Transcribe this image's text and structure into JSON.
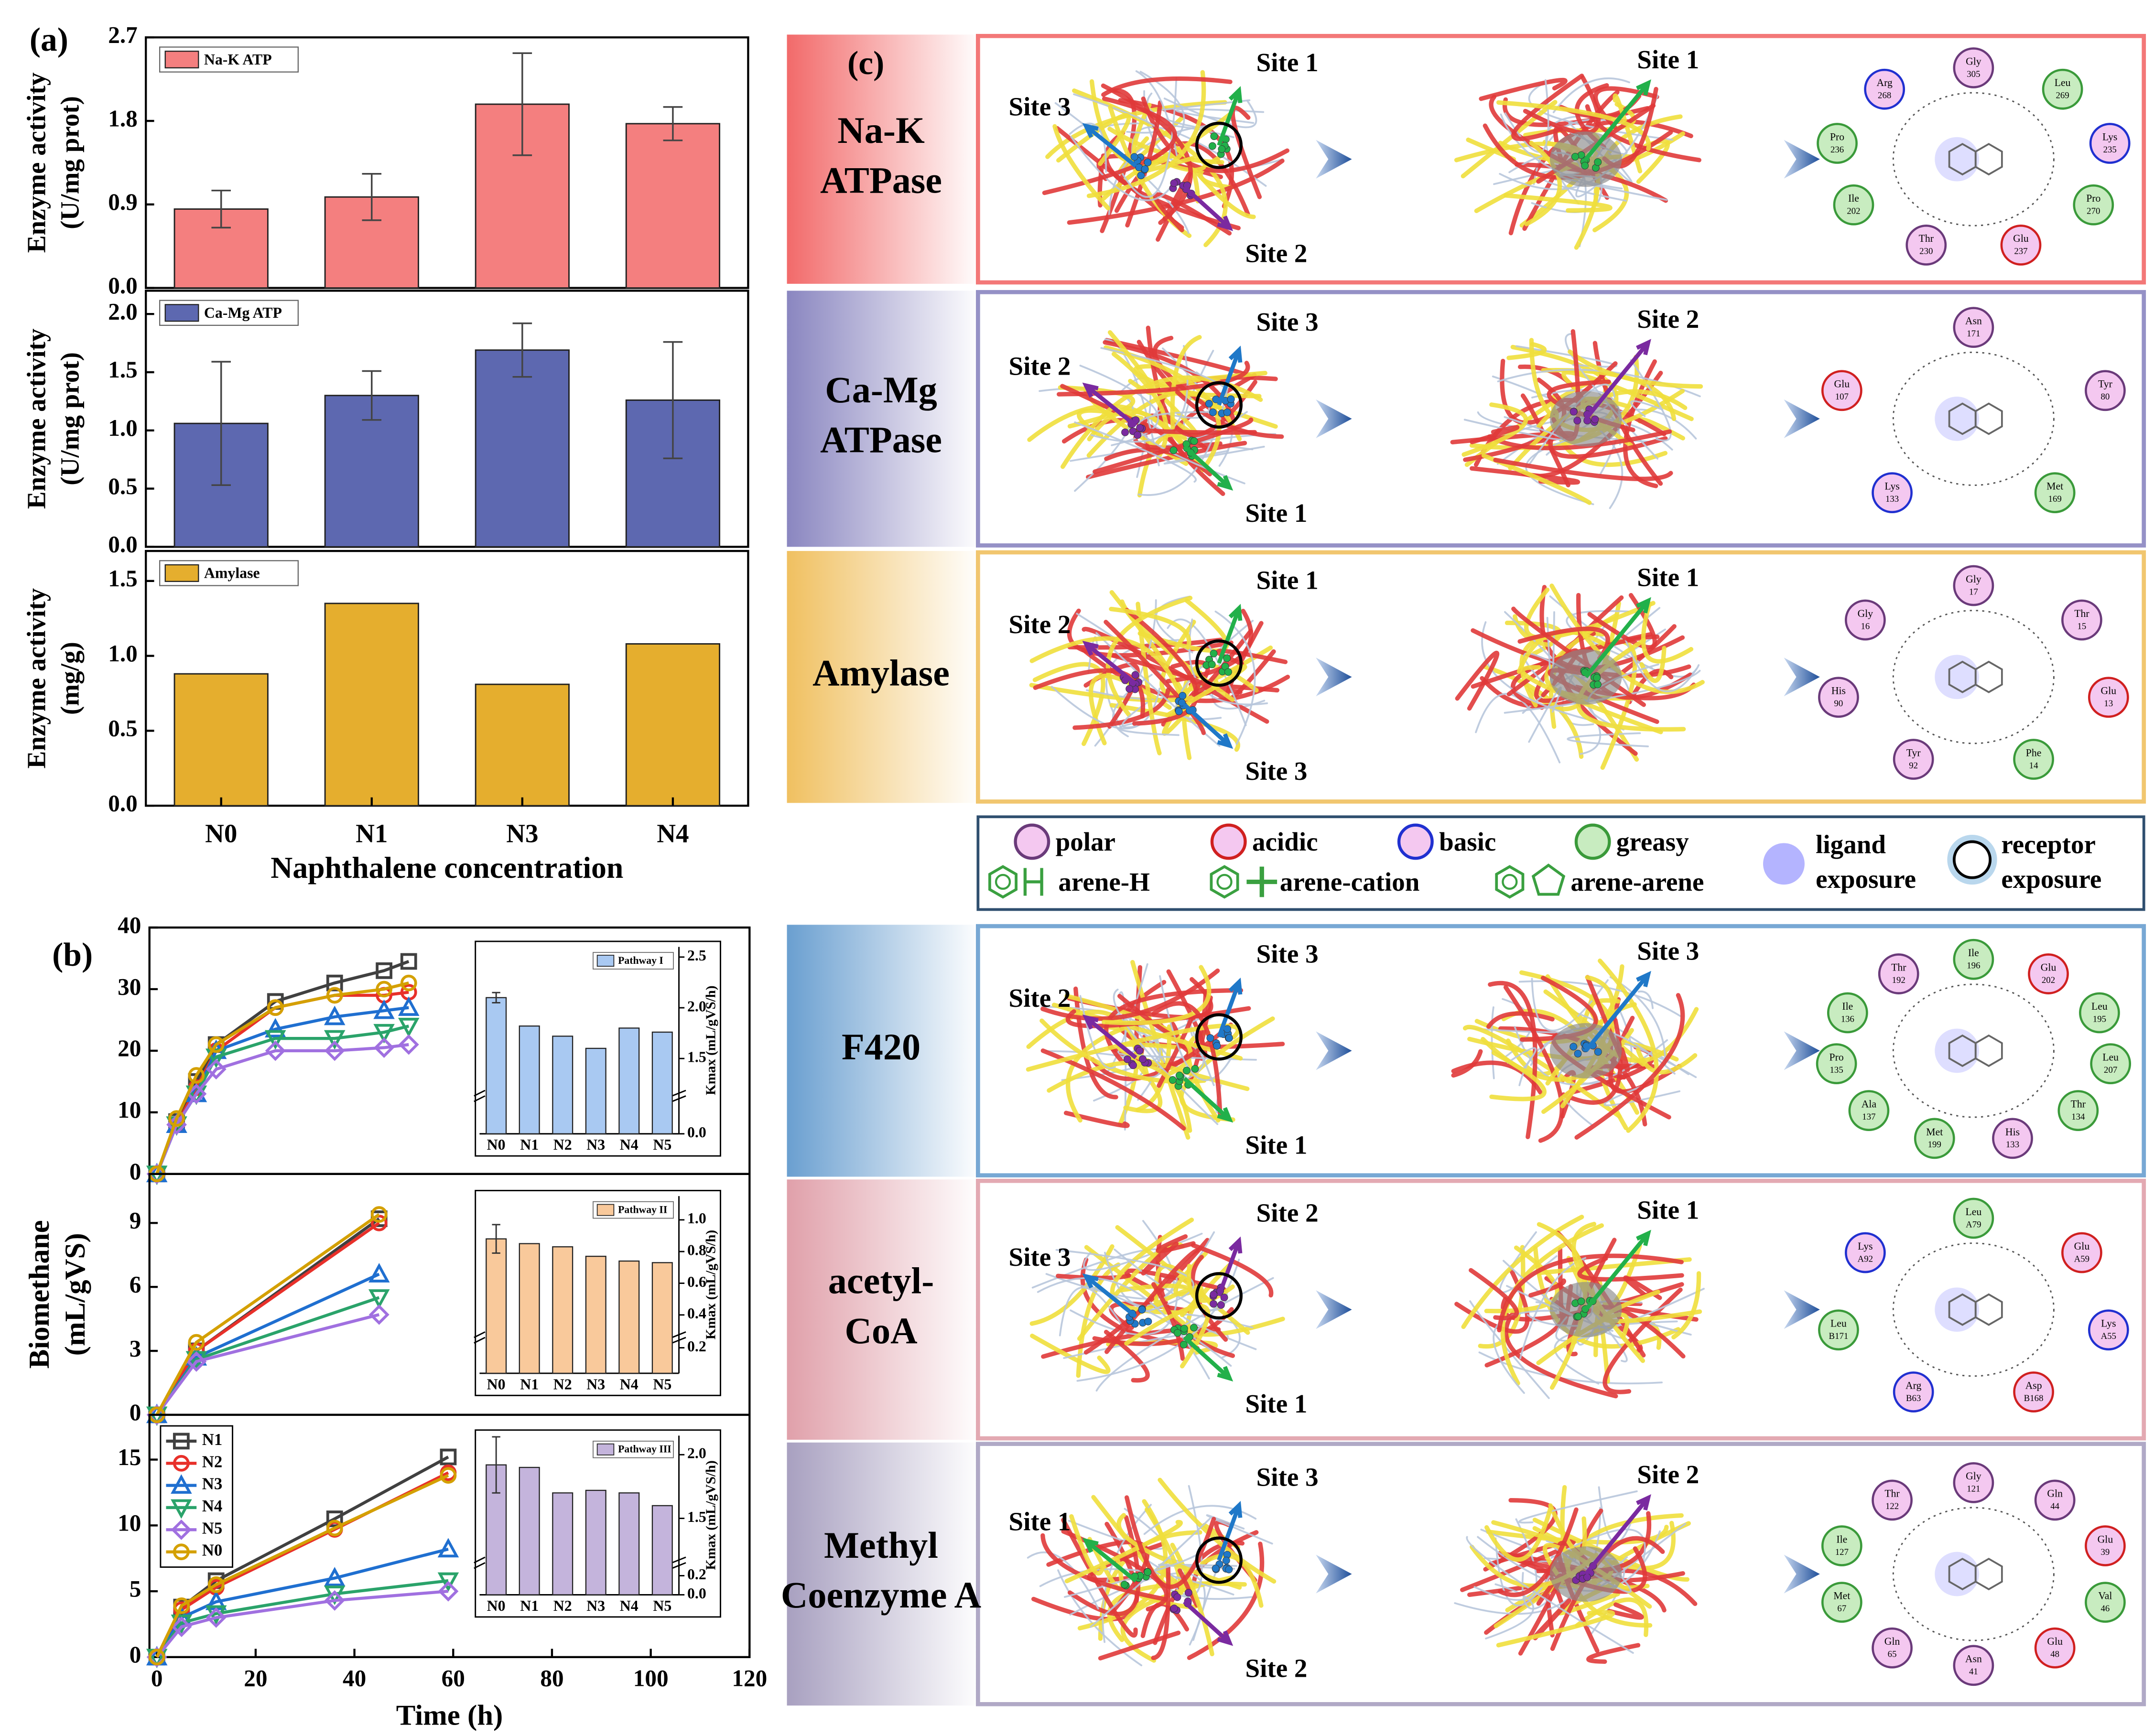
{
  "chart_data": [
    {
      "type": "bar",
      "panel": "(a)",
      "ylim": [
        0,
        2.7
      ],
      "yticks": [
        {
          "value": 0,
          "label": "0.0"
        },
        0.9,
        1.8,
        2.7
      ],
      "ylabel": [
        "Enzyme activity",
        "(U/mg prot)"
      ],
      "series": [
        {
          "name": "Na-K ATP",
          "color": "#f47f7f",
          "values": [
            0.85,
            0.98,
            1.98,
            1.77
          ],
          "errors": [
            0.2,
            0.25,
            0.55,
            0.18
          ]
        }
      ]
    },
    {
      "type": "bar",
      "ylim": [
        0,
        2.2
      ],
      "yticks": [
        {
          "value": 0,
          "label": "0.0"
        },
        0.5,
        {
          "value": 1,
          "label": "1.0"
        },
        1.5,
        {
          "value": 2,
          "label": "2.0"
        }
      ],
      "ylabel": [
        "Enzyme activity",
        "(U/mg prot)"
      ],
      "series": [
        {
          "name": "Ca-Mg ATP",
          "color": "#5d68b0",
          "values": [
            1.06,
            1.3,
            1.69,
            1.26
          ],
          "errors": [
            0.53,
            0.21,
            0.23,
            0.5
          ]
        }
      ]
    },
    {
      "type": "bar",
      "ylim": [
        0,
        1.7
      ],
      "yticks": [
        {
          "value": 0,
          "label": "0.0"
        },
        0.5,
        {
          "value": 1,
          "label": "1.0"
        },
        1.5
      ],
      "ylabel": [
        "Enzyme activity",
        "(mg/g)"
      ],
      "categories": [
        "N0",
        "N1",
        "N3",
        "N4"
      ],
      "xlabel": "Naphthalene concentration",
      "series": [
        {
          "name": "Amylase",
          "color": "#e5ae2e",
          "values": [
            0.88,
            1.35,
            0.81,
            1.08
          ]
        }
      ]
    },
    {
      "type": "line",
      "panel": "(b)",
      "x": [
        0,
        4,
        8,
        12,
        24,
        36,
        46,
        51
      ],
      "xlim": [
        -1.5,
        120
      ],
      "ylim": [
        0,
        40
      ],
      "yticks": [
        0,
        10,
        20,
        30,
        40
      ],
      "series": [
        {
          "color": "#404040",
          "values": [
            0,
            8.5,
            15,
            21,
            28,
            31,
            33,
            34.5
          ]
        },
        {
          "color": "#e8302a",
          "values": [
            0,
            8,
            14,
            20,
            27,
            29,
            29,
            29.5
          ]
        },
        {
          "color": "#1f6fd0",
          "values": [
            0,
            8,
            13,
            20,
            23.5,
            25.5,
            26.5,
            27
          ]
        },
        {
          "color": "#2aa36a",
          "values": [
            0,
            8,
            13,
            19,
            22,
            22,
            23,
            24
          ]
        },
        {
          "color": "#a070e0",
          "values": [
            0,
            8,
            13,
            17,
            20,
            20,
            20.5,
            21
          ]
        },
        {
          "color": "#d4a000",
          "values": [
            0,
            9,
            16,
            21,
            27,
            29,
            30,
            31
          ]
        }
      ],
      "inset": {
        "type": "bar",
        "title": "Pathway I",
        "categories": [
          "N0",
          "N1",
          "N2",
          "N3",
          "N4",
          "N5"
        ],
        "color": "#a9c9f2",
        "values": [
          2.1,
          1.82,
          1.72,
          1.6,
          1.8,
          1.76
        ],
        "errors": [
          0.05,
          null,
          null,
          null,
          null,
          null
        ],
        "ylim": [
          0,
          2.6
        ],
        "ybreak": [
          0.3,
          1.2
        ],
        "yticks": [
          {
            "value": 0,
            "label": "0.0"
          },
          1.5,
          {
            "value": 2,
            "label": "2.0"
          },
          2.5
        ],
        "ylabel": "Kmax (mL/gVS/h)"
      }
    },
    {
      "type": "line",
      "x": [
        0,
        8,
        45
      ],
      "xlim": [
        -1.5,
        120
      ],
      "ylim": [
        0,
        11.3
      ],
      "yticks": [
        0,
        3,
        6,
        9
      ],
      "ylabel": [
        "Biomethane",
        "(mL/gVS)"
      ],
      "series": [
        {
          "color": "#404040",
          "values": [
            0,
            3.0,
            9.2
          ]
        },
        {
          "color": "#e8302a",
          "values": [
            0,
            3.0,
            9.0
          ]
        },
        {
          "color": "#1f6fd0",
          "values": [
            0,
            2.7,
            6.6
          ]
        },
        {
          "color": "#2aa36a",
          "values": [
            0,
            2.6,
            5.5
          ]
        },
        {
          "color": "#a070e0",
          "values": [
            0,
            2.5,
            4.7
          ]
        },
        {
          "color": "#d4a000",
          "values": [
            0,
            3.4,
            9.4
          ]
        }
      ],
      "inset": {
        "type": "bar",
        "title": "Pathway II",
        "categories": [
          "N0",
          "N1",
          "N2",
          "N3",
          "N4",
          "N5"
        ],
        "color": "#f9c99b",
        "values": [
          0.88,
          0.85,
          0.83,
          0.77,
          0.74,
          0.73
        ],
        "errors": [
          0.09,
          null,
          null,
          null,
          null,
          null
        ],
        "ylim": [
          0,
          1.15
        ],
        "ybreak": [
          0.25,
          0.3
        ],
        "yticks": [
          0.2,
          0.4,
          0.6,
          0.8,
          {
            "value": 1,
            "label": "1.0"
          }
        ],
        "ylabel": "Kmax (mL/gVS/h)"
      }
    },
    {
      "type": "line",
      "x": [
        0,
        5,
        12,
        36,
        59
      ],
      "xlim": [
        -1.5,
        120
      ],
      "ylim": [
        0,
        18.4
      ],
      "yticks": [
        0,
        5,
        10,
        15
      ],
      "xticks": [
        0,
        20,
        40,
        60,
        80,
        100,
        120
      ],
      "xlabel": "Time (h)",
      "legend": "upper left",
      "series": [
        {
          "name": "N1",
          "color": "#404040",
          "values": [
            0,
            3.8,
            5.8,
            10.5,
            15.2
          ]
        },
        {
          "name": "N2",
          "color": "#e8302a",
          "values": [
            0,
            3.6,
            5.3,
            9.7,
            14
          ]
        },
        {
          "name": "N3",
          "color": "#1f6fd0",
          "values": [
            0,
            3.0,
            4.2,
            6.0,
            8.2
          ]
        },
        {
          "name": "N4",
          "color": "#2aa36a",
          "values": [
            0,
            2.6,
            3.3,
            4.8,
            5.8
          ]
        },
        {
          "name": "N5",
          "color": "#a070e0",
          "values": [
            0,
            2.3,
            3.0,
            4.3,
            5.0
          ]
        },
        {
          "name": "N0",
          "color": "#d4a000",
          "values": [
            0,
            3.9,
            5.5,
            9.8,
            13.8
          ]
        }
      ],
      "inset": {
        "type": "bar",
        "title": "Pathway III",
        "categories": [
          "N0",
          "N1",
          "N2",
          "N3",
          "N4",
          "N5"
        ],
        "color": "#c4b4dc",
        "values": [
          1.92,
          1.9,
          1.7,
          1.72,
          1.7,
          1.6
        ],
        "errors": [
          0.22,
          null,
          null,
          null,
          null,
          null
        ],
        "ylim": [
          0,
          2.15
        ],
        "ybreak": [
          0.3,
          1.2
        ],
        "yticks": [
          {
            "value": 0,
            "label": "0.0"
          },
          0.2,
          1.5,
          {
            "value": 2,
            "label": "2.0"
          }
        ],
        "ylabel": "Kmax (mL/gVS/h)"
      }
    }
  ],
  "panel_c": {
    "label": "(c)",
    "legend": [
      {
        "label": "polar",
        "fill": "#f4c8f0",
        "stroke": "#6a3a7a"
      },
      {
        "label": "acidic",
        "fill": "#f4c8f0",
        "stroke": "#d02020"
      },
      {
        "label": "basic",
        "fill": "#f4c8f0",
        "stroke": "#2030d0"
      },
      {
        "label": "greasy",
        "fill": "#c8ecc0",
        "stroke": "#3a9a3a"
      },
      {
        "label": [
          "ligand",
          "exposure"
        ]
      },
      {
        "label": [
          "receptor",
          "exposure"
        ]
      },
      {
        "label": "arene-H"
      },
      {
        "label": "arene-cation"
      },
      {
        "label": "arene-arene"
      }
    ],
    "rows": [
      {
        "name": [
          "Na-K",
          "ATPase"
        ],
        "color": "#f26a6a",
        "sites": [
          {
            "label": "Site 1",
            "color": "#22b04a"
          },
          {
            "label": "Site 3",
            "color": "#1f78c8"
          },
          {
            "label": "Site 2",
            "color": "#7a2aa0"
          }
        ],
        "docked": {
          "label": "Site 1",
          "color": "#22b04a"
        },
        "residues": [
          {
            "name": "Gly",
            "id": "305",
            "style": "polar"
          },
          {
            "name": "Leu",
            "id": "269",
            "style": "greasy"
          },
          {
            "name": "Lys",
            "id": "235",
            "style": "basic"
          },
          {
            "name": "Pro",
            "id": "270",
            "style": "greasy"
          },
          {
            "name": "Glu",
            "id": "237",
            "style": "acidic"
          },
          {
            "name": "Thr",
            "id": "230",
            "style": "polar"
          },
          {
            "name": "Ile",
            "id": "202",
            "style": "greasy"
          },
          {
            "name": "Pro",
            "id": "236",
            "style": "greasy"
          },
          {
            "name": "Arg",
            "id": "268",
            "style": "basic"
          }
        ]
      },
      {
        "name": [
          "Ca-Mg",
          "ATPase"
        ],
        "color": "#8a86c0",
        "sites": [
          {
            "label": "Site 3",
            "color": "#1f78c8"
          },
          {
            "label": "Site 2",
            "color": "#7a2aa0"
          },
          {
            "label": "Site 1",
            "color": "#22b04a"
          }
        ],
        "docked": {
          "label": "Site 2",
          "color": "#7a2aa0"
        },
        "residues": [
          {
            "name": "Asn",
            "id": "171",
            "style": "polar"
          },
          {
            "name": "Tyr",
            "id": "80",
            "style": "polar"
          },
          {
            "name": "Met",
            "id": "169",
            "style": "greasy"
          },
          {
            "name": "Lys",
            "id": "133",
            "style": "basic"
          },
          {
            "name": "Glu",
            "id": "107",
            "style": "acidic"
          }
        ]
      },
      {
        "name": [
          "Amylase"
        ],
        "color": "#f0c060",
        "sites": [
          {
            "label": "Site 1",
            "color": "#22b04a"
          },
          {
            "label": "Site 2",
            "color": "#7a2aa0"
          },
          {
            "label": "Site 3",
            "color": "#1f78c8"
          }
        ],
        "docked": {
          "label": "Site 1",
          "color": "#22b04a"
        },
        "residues": [
          {
            "name": "Gly",
            "id": "17",
            "style": "polar"
          },
          {
            "name": "Thr",
            "id": "15",
            "style": "polar"
          },
          {
            "name": "Glu",
            "id": "13",
            "style": "acidic"
          },
          {
            "name": "Phe",
            "id": "14",
            "style": "greasy"
          },
          {
            "name": "Tyr",
            "id": "92",
            "style": "polar"
          },
          {
            "name": "His",
            "id": "90",
            "style": "polar"
          },
          {
            "name": "Gly",
            "id": "16",
            "style": "polar"
          }
        ]
      },
      {
        "name": [
          "F420"
        ],
        "color": "#6a9fd0",
        "sites": [
          {
            "label": "Site 3",
            "color": "#1f78c8"
          },
          {
            "label": "Site 2",
            "color": "#7a2aa0"
          },
          {
            "label": "Site 1",
            "color": "#22b04a"
          }
        ],
        "docked": {
          "label": "Site 3",
          "color": "#1f78c8"
        },
        "residues": [
          {
            "name": "Ile",
            "id": "196",
            "style": "greasy"
          },
          {
            "name": "Glu",
            "id": "202",
            "style": "acidic"
          },
          {
            "name": "Leu",
            "id": "195",
            "style": "greasy"
          },
          {
            "name": "Leu",
            "id": "207",
            "style": "greasy"
          },
          {
            "name": "Thr",
            "id": "134",
            "style": "greasy"
          },
          {
            "name": "His",
            "id": "133",
            "style": "polar"
          },
          {
            "name": "Met",
            "id": "199",
            "style": "greasy"
          },
          {
            "name": "Ala",
            "id": "137",
            "style": "greasy"
          },
          {
            "name": "Pro",
            "id": "135",
            "style": "greasy"
          },
          {
            "name": "Ile",
            "id": "136",
            "style": "greasy"
          },
          {
            "name": "Thr",
            "id": "192",
            "style": "polar"
          }
        ]
      },
      {
        "name": [
          "acetyl-",
          "CoA"
        ],
        "color": "#e0a0aa",
        "sites": [
          {
            "label": "Site 2",
            "color": "#7a2aa0"
          },
          {
            "label": "Site 3",
            "color": "#1f78c8"
          },
          {
            "label": "Site 1",
            "color": "#22b04a"
          }
        ],
        "docked": {
          "label": "Site 1",
          "color": "#22b04a"
        },
        "residues": [
          {
            "name": "Leu",
            "id": "A79",
            "style": "greasy"
          },
          {
            "name": "Glu",
            "id": "A59",
            "style": "acidic"
          },
          {
            "name": "Lys",
            "id": "A55",
            "style": "basic"
          },
          {
            "name": "Asp",
            "id": "B168",
            "style": "acidic"
          },
          {
            "name": "Arg",
            "id": "B63",
            "style": "basic"
          },
          {
            "name": "Leu",
            "id": "B171",
            "style": "greasy"
          },
          {
            "name": "Lys",
            "id": "A92",
            "style": "basic"
          }
        ]
      },
      {
        "name": [
          "Methyl",
          "Coenzyme A"
        ],
        "color": "#a8a0c0",
        "sites": [
          {
            "label": "Site 3",
            "color": "#1f78c8"
          },
          {
            "label": "Site 1",
            "color": "#22b04a"
          },
          {
            "label": "Site 2",
            "color": "#7a2aa0"
          }
        ],
        "docked": {
          "label": "Site 2",
          "color": "#7a2aa0"
        },
        "residues": [
          {
            "name": "Gly",
            "id": "121",
            "style": "polar"
          },
          {
            "name": "Gln",
            "id": "44",
            "style": "polar"
          },
          {
            "name": "Glu",
            "id": "39",
            "style": "acidic"
          },
          {
            "name": "Val",
            "id": "46",
            "style": "greasy"
          },
          {
            "name": "Glu",
            "id": "48",
            "style": "acidic"
          },
          {
            "name": "Asn",
            "id": "41",
            "style": "polar"
          },
          {
            "name": "Gln",
            "id": "65",
            "style": "polar"
          },
          {
            "name": "Met",
            "id": "67",
            "style": "greasy"
          },
          {
            "name": "Ile",
            "id": "127",
            "style": "greasy"
          },
          {
            "name": "Thr",
            "id": "122",
            "style": "polar"
          }
        ]
      }
    ]
  }
}
